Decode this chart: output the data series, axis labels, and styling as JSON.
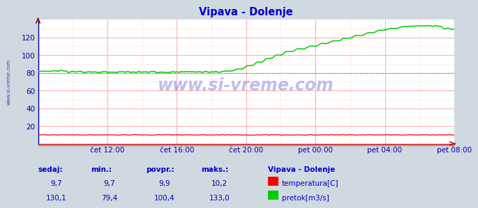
{
  "title": "Vipava - Dolenje",
  "bg_color": "#d0d8e0",
  "plot_bg_color": "#ffffff",
  "grid_color": "#ffaaaa",
  "grid_minor_color": "#ffcccc",
  "title_color": "#0000cc",
  "tick_color": "#0000aa",
  "watermark": "www.si-vreme.com",
  "watermark_color": "#0000bb",
  "watermark_alpha": 0.25,
  "ylim": [
    0,
    140
  ],
  "yticks": [
    20,
    40,
    60,
    80,
    100,
    120
  ],
  "xlim": [
    0,
    288
  ],
  "xtick_positions": [
    48,
    96,
    144,
    192,
    240,
    288
  ],
  "xtick_labels": [
    "čet 12:00",
    "čet 16:00",
    "čet 20:00",
    "pet 00:00",
    "pet 04:00",
    "pet 08:00"
  ],
  "temp_color": "#ff0000",
  "flow_color": "#00cc00",
  "flow_min_line": 79.4,
  "legend_title": "Vipava - Dolenje",
  "legend_title_color": "#0000cc",
  "legend_text_color": "#0000cc",
  "stats_label_color": "#0000cc",
  "stats_values_temp_color": "#000099",
  "stats_values_flow_color": "#0000cc",
  "sidebar_text": "www.si-vreme.com",
  "sidebar_color": "#0000cc",
  "headers": [
    "sedaj:",
    "min.:",
    "povpr.:",
    "maks.:"
  ],
  "temp_vals": [
    "9,7",
    "9,7",
    "9,9",
    "10,2"
  ],
  "flow_vals": [
    "130,1",
    "79,4",
    "100,4",
    "133,0"
  ],
  "legend_items": [
    "temperatura[C]",
    "pretok[m3/s]"
  ]
}
